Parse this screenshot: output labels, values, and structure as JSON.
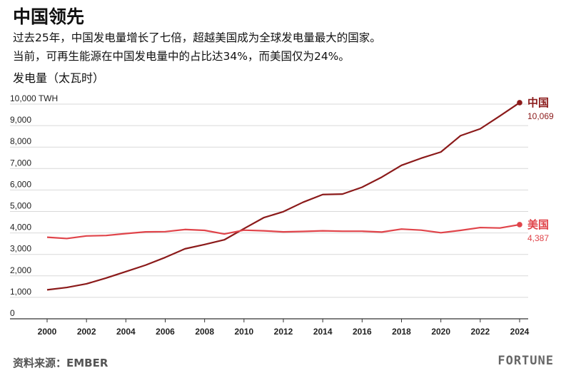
{
  "header": {
    "title": "中国领先",
    "subtitle_line1": "过去25年，中国发电量增长了七倍，超越美国成为全球发电量最大的国家。",
    "subtitle_line2": "当前，可再生能源在中国发电量中的占比达34%，而美国仅为24%。"
  },
  "footer": {
    "source": "资料来源：EMBER",
    "brand": "FORTUNE"
  },
  "colors": {
    "china": "#8b1a1a",
    "usa": "#e0444a",
    "grid": "#d9d9d9",
    "axis": "#333333"
  },
  "chart_data": {
    "type": "line",
    "ylabel": "发电量（太瓦时）",
    "ylim": [
      0,
      10000
    ],
    "yticks": [
      0,
      1000,
      2000,
      3000,
      4000,
      5000,
      6000,
      7000,
      8000,
      9000,
      10000
    ],
    "ytick_labels": [
      "0",
      "1,000",
      "2,000",
      "3,000",
      "4,000",
      "5,000",
      "6,000",
      "7,000",
      "8,000",
      "9,000",
      "10,000 TWH"
    ],
    "xlim": [
      2000,
      2024
    ],
    "xticks": [
      2000,
      2002,
      2004,
      2006,
      2008,
      2010,
      2012,
      2014,
      2016,
      2018,
      2020,
      2022,
      2024
    ],
    "xtick_labels": [
      "2000",
      "2002",
      "2004",
      "2006",
      "2008",
      "2010",
      "2012",
      "2014",
      "2016",
      "2018",
      "2020",
      "2022",
      "2024"
    ],
    "grid": "horizontal",
    "x": [
      2000,
      2001,
      2002,
      2003,
      2004,
      2005,
      2006,
      2007,
      2008,
      2009,
      2010,
      2011,
      2012,
      2013,
      2014,
      2015,
      2016,
      2017,
      2018,
      2019,
      2020,
      2021,
      2022,
      2023,
      2024
    ],
    "series": [
      {
        "name": "中国",
        "label_value": "10,069",
        "color_key": "china",
        "values": [
          1350,
          1460,
          1630,
          1900,
          2200,
          2500,
          2860,
          3260,
          3460,
          3680,
          4200,
          4710,
          4990,
          5430,
          5790,
          5810,
          6130,
          6600,
          7150,
          7480,
          7770,
          8530,
          8850,
          9450,
          10069
        ]
      },
      {
        "name": "美国",
        "label_value": "4,387",
        "color_key": "usa",
        "values": [
          3800,
          3740,
          3860,
          3880,
          3970,
          4050,
          4060,
          4160,
          4120,
          3950,
          4130,
          4100,
          4050,
          4070,
          4100,
          4080,
          4080,
          4040,
          4180,
          4130,
          4010,
          4120,
          4250,
          4230,
          4387
        ]
      }
    ]
  }
}
